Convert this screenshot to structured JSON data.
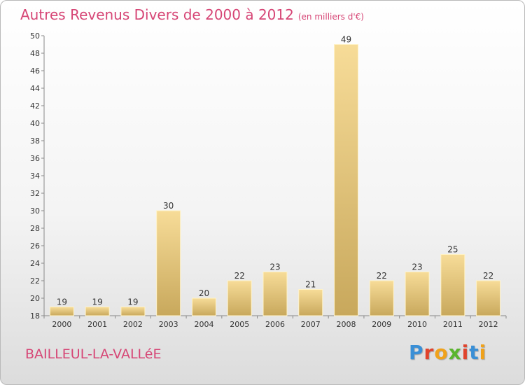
{
  "header": {
    "title": "Autres Revenus Divers de 2000 à 2012",
    "unit": "(en milliers d'€)"
  },
  "footer": {
    "commune": "BAILLEUL-LA-VALLéE",
    "logo_letters": [
      "P",
      "r",
      "o",
      "x",
      "i",
      "t",
      "i"
    ],
    "logo_colors": [
      "#3a8fd6",
      "#e0432c",
      "#f0a21b",
      "#5ab52e",
      "#e0432c",
      "#3a8fd6",
      "#f0a21b"
    ]
  },
  "chart_data": {
    "type": "bar",
    "title": "Autres Revenus Divers de 2000 à 2012",
    "subtitle": "(en milliers d'€)",
    "xlabel": "",
    "ylabel": "",
    "categories": [
      "2000",
      "2001",
      "2002",
      "2003",
      "2004",
      "2005",
      "2006",
      "2007",
      "2008",
      "2009",
      "2010",
      "2011",
      "2012"
    ],
    "values": [
      19,
      19,
      19,
      30,
      20,
      22,
      23,
      21,
      49,
      22,
      23,
      25,
      22
    ],
    "ylim": [
      18,
      50
    ],
    "yticks": [
      18,
      20,
      22,
      24,
      26,
      28,
      30,
      32,
      34,
      36,
      38,
      40,
      42,
      44,
      46,
      48,
      50
    ],
    "grid": false,
    "legend": "none",
    "bar_color": "#e8c97e",
    "label_color": "#d64575"
  }
}
